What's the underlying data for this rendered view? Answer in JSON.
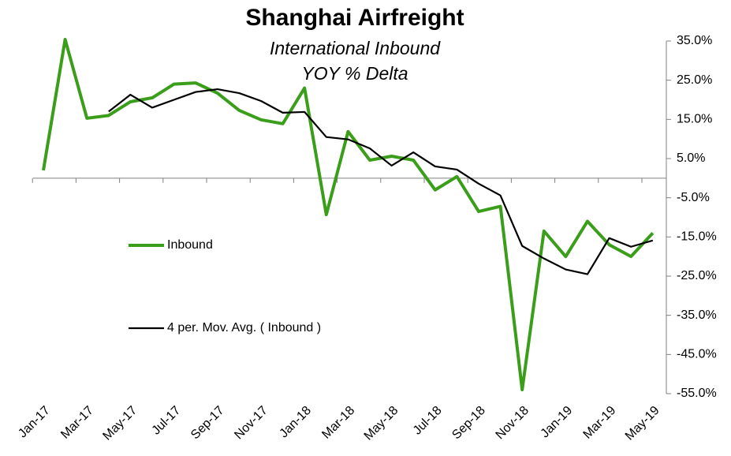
{
  "chart_data": {
    "type": "line",
    "title": "Shanghai Airfreight",
    "subtitle": [
      "International Inbound",
      "YOY % Delta"
    ],
    "categories": [
      "Jan-17",
      null,
      "Mar-17",
      null,
      "May-17",
      null,
      "Jul-17",
      null,
      "Sep-17",
      null,
      "Nov-17",
      null,
      "Jan-18",
      null,
      "Mar-18",
      null,
      "May-18",
      null,
      "Jul-18",
      null,
      "Sep-18",
      null,
      "Nov-18",
      null,
      "Jan-19",
      null,
      "Mar-19",
      null,
      "May-19"
    ],
    "series": [
      {
        "name": "Inbound",
        "color": "#3a9e1a",
        "width": 4,
        "values": [
          2,
          35.4,
          15.3,
          16,
          19.5,
          20.5,
          24,
          24.3,
          21.7,
          17.3,
          14.9,
          13.9,
          23,
          -9.3,
          11.9,
          4.6,
          5.6,
          4.6,
          -3,
          0.4,
          -8.5,
          -7.2,
          -54,
          -13.5,
          -20,
          -11,
          -17,
          -20,
          -14
        ]
      },
      {
        "name": "4 per. Mov. Avg. ( Inbound )",
        "color": "#000000",
        "width": 2.2,
        "values": [
          null,
          null,
          null,
          17,
          21.3,
          18,
          20,
          22,
          22.7,
          21.7,
          19.7,
          16.7,
          16.9,
          10.5,
          9.9,
          7.6,
          3.2,
          6.6,
          3,
          2.2,
          -1.4,
          -4.4,
          -17.3,
          -20.5,
          -23.3,
          -24.5,
          -15.3,
          -17.5,
          -15.9
        ]
      }
    ],
    "ylim": [
      -55,
      35
    ],
    "yticks": [
      {
        "value": 35,
        "label": "35.0%"
      },
      {
        "value": 25,
        "label": "25.0%"
      },
      {
        "value": 15,
        "label": "15.0%"
      },
      {
        "value": 5,
        "label": "5.0%"
      },
      {
        "value": -5,
        "label": "-5.0%"
      },
      {
        "value": -15,
        "label": "-15.0%"
      },
      {
        "value": -25,
        "label": "-25.0%"
      },
      {
        "value": -35,
        "label": "-35.0%"
      },
      {
        "value": -45,
        "label": "-45.0%"
      },
      {
        "value": -55,
        "label": "-55.0%"
      }
    ],
    "grid": false
  }
}
